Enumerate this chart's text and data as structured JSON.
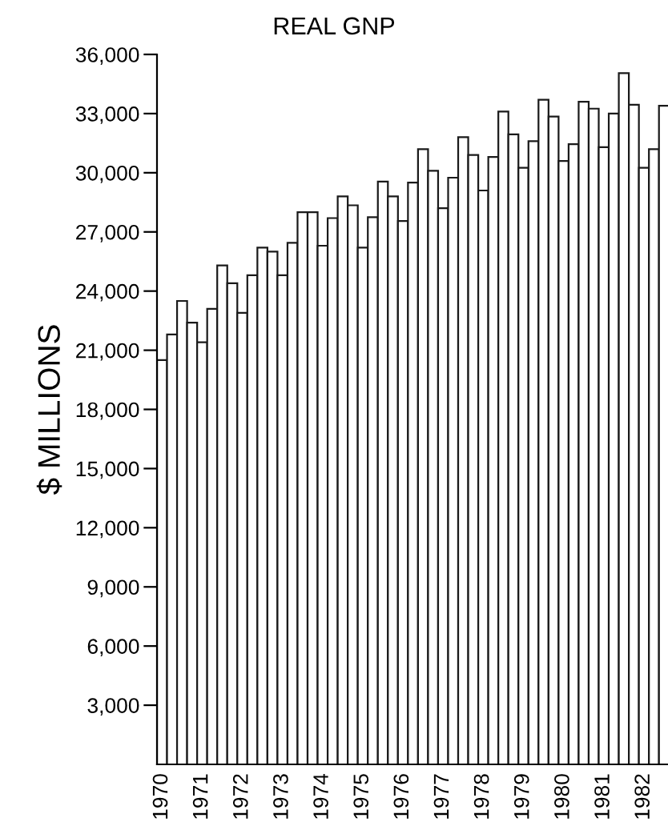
{
  "chart_data": {
    "type": "bar",
    "title": "REAL GNP",
    "ylabel": "$ MILLIONS",
    "categories": [
      "1970",
      null,
      null,
      null,
      "1971",
      null,
      null,
      null,
      "1972",
      null,
      null,
      null,
      "1973",
      null,
      null,
      null,
      "1974",
      null,
      null,
      null,
      "1975",
      null,
      null,
      null,
      "1976",
      null,
      null,
      null,
      "1977",
      null,
      null,
      null,
      "1978",
      null,
      null,
      null,
      "1979",
      null,
      null,
      null,
      "1980",
      null,
      null,
      null,
      "1981",
      null,
      null,
      null,
      "1982",
      null,
      null
    ],
    "values": [
      20500,
      21800,
      23500,
      22400,
      21400,
      23100,
      25300,
      24400,
      22900,
      24800,
      26200,
      26000,
      24800,
      26450,
      28000,
      28000,
      26300,
      27700,
      28800,
      28350,
      26200,
      27750,
      29550,
      28800,
      27550,
      29500,
      31200,
      30100,
      28200,
      29750,
      31800,
      30900,
      29100,
      30800,
      33100,
      31950,
      30250,
      31600,
      33700,
      32850,
      30600,
      31450,
      33600,
      33250,
      31300,
      33000,
      35050,
      33450,
      30250,
      31200,
      33400
    ],
    "color": "#ffffff",
    "ylim": [
      0,
      36000
    ],
    "yticks": [
      {
        "value": 3000,
        "label": "3,000"
      },
      {
        "value": 6000,
        "label": "6,000"
      },
      {
        "value": 9000,
        "label": "9,000"
      },
      {
        "value": 12000,
        "label": "12,000"
      },
      {
        "value": 15000,
        "label": "15,000"
      },
      {
        "value": 18000,
        "label": "18,000"
      },
      {
        "value": 21000,
        "label": "21,000"
      },
      {
        "value": 24000,
        "label": "24,000"
      },
      {
        "value": 27000,
        "label": "27,000"
      },
      {
        "value": 30000,
        "label": "30,000"
      },
      {
        "value": 33000,
        "label": "33,000"
      },
      {
        "value": 36000,
        "label": "36,000"
      }
    ],
    "grid": false
  }
}
